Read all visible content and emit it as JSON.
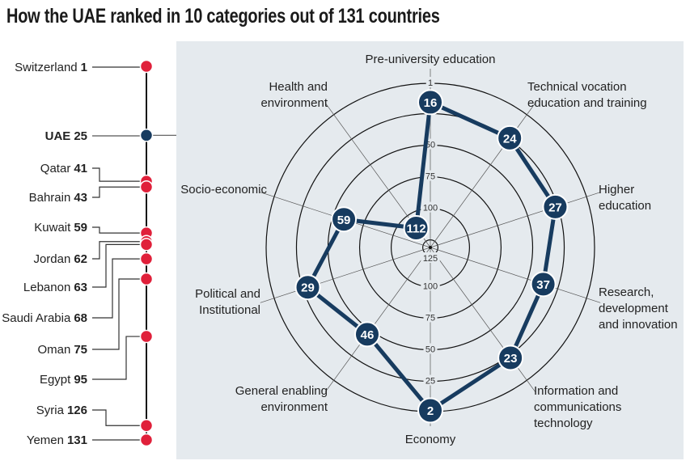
{
  "title": "How the UAE ranked in 10 categories out of 131 countries",
  "colors": {
    "uae": "#173b5f",
    "other": "#e0203a",
    "panel": "#e5eaee"
  },
  "chart_data": [
    {
      "type": "scatter",
      "description_axis": "rank",
      "total": 131,
      "countries": [
        {
          "name": "Switzerland",
          "rank": 1
        },
        {
          "name": "UAE",
          "rank": 25,
          "highlight": true
        },
        {
          "name": "Qatar",
          "rank": 41
        },
        {
          "name": "Bahrain",
          "rank": 43
        },
        {
          "name": "Kuwait",
          "rank": 59
        },
        {
          "name": "Jordan",
          "rank": 62
        },
        {
          "name": "Lebanon",
          "rank": 63
        },
        {
          "name": "Saudi Arabia",
          "rank": 68
        },
        {
          "name": "Oman",
          "rank": 75
        },
        {
          "name": "Egypt",
          "rank": 95
        },
        {
          "name": "Syria",
          "rank": 126
        },
        {
          "name": "Yemen",
          "rank": 131
        }
      ]
    },
    {
      "type": "radar",
      "range": [
        131,
        1
      ],
      "ring_ticks_top": [
        "1",
        "50",
        "75",
        "100"
      ],
      "ring_ticks_top_values": [
        1,
        50,
        75,
        100
      ],
      "center_tick": "125",
      "ring_ticks_bottom": [
        "100",
        "75",
        "50",
        "25"
      ],
      "ring_ticks_bottom_values": [
        100,
        75,
        50,
        25
      ],
      "rings": [
        1,
        25,
        50,
        75,
        100,
        125
      ],
      "categories": [
        {
          "label": [
            "Pre-university education"
          ],
          "rank": 16
        },
        {
          "label": [
            "Technical vocation",
            "education and training"
          ],
          "rank": 24
        },
        {
          "label": [
            "Higher",
            "education"
          ],
          "rank": 27
        },
        {
          "label": [
            "Research,",
            "development",
            "and innovation"
          ],
          "rank": 37
        },
        {
          "label": [
            "Information and",
            "communications",
            "technology"
          ],
          "rank": 23
        },
        {
          "label": [
            "Economy"
          ],
          "rank": 2
        },
        {
          "label": [
            "General enabling",
            "environment"
          ],
          "rank": 46
        },
        {
          "label": [
            "Political and",
            "Institutional"
          ],
          "rank": 29
        },
        {
          "label": [
            "Socio-economic"
          ],
          "rank": 59
        },
        {
          "label": [
            "Health and",
            "environment"
          ],
          "rank": 112
        }
      ]
    }
  ]
}
